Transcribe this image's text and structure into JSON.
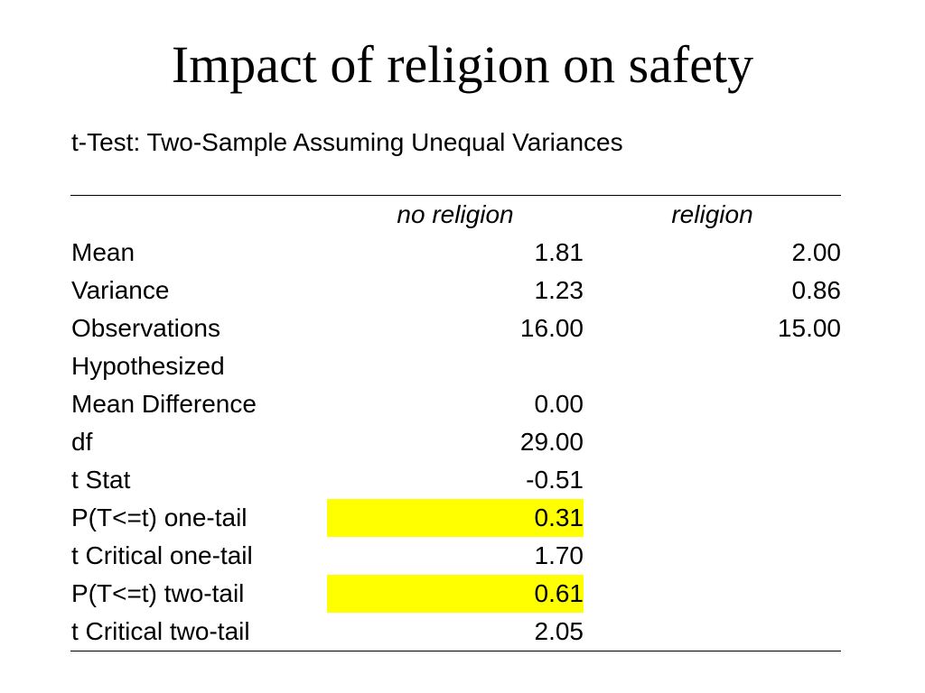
{
  "title": "Impact of religion on safety",
  "subtitle": "t-Test: Two-Sample Assuming Unequal Variances",
  "table": {
    "headers": [
      "",
      "no religion",
      "religion"
    ],
    "rows": [
      {
        "label": "Mean",
        "a": "1.81",
        "b": "2.00",
        "highlight": false
      },
      {
        "label": "Variance",
        "a": "1.23",
        "b": "0.86",
        "highlight": false
      },
      {
        "label": "Observations",
        "a": "16.00",
        "b": "15.00",
        "highlight": false
      },
      {
        "label": "Hypothesized",
        "a": "",
        "b": "",
        "highlight": false
      },
      {
        "label": "Mean Difference",
        "a": "0.00",
        "b": "",
        "highlight": false
      },
      {
        "label": "df",
        "a": "29.00",
        "b": "",
        "highlight": false
      },
      {
        "label": "t Stat",
        "a": "-0.51",
        "b": "",
        "highlight": false
      },
      {
        "label": "P(T<=t) one-tail",
        "a": "0.31",
        "b": "",
        "highlight": true
      },
      {
        "label": "t Critical one-tail",
        "a": "1.70",
        "b": "",
        "highlight": false
      },
      {
        "label": "P(T<=t) two-tail",
        "a": "0.61",
        "b": "",
        "highlight": true
      },
      {
        "label": "t Critical two-tail",
        "a": "2.05",
        "b": "",
        "highlight": false
      }
    ]
  },
  "colors": {
    "highlight": "#ffff00",
    "text": "#000000",
    "background": "#ffffff"
  }
}
